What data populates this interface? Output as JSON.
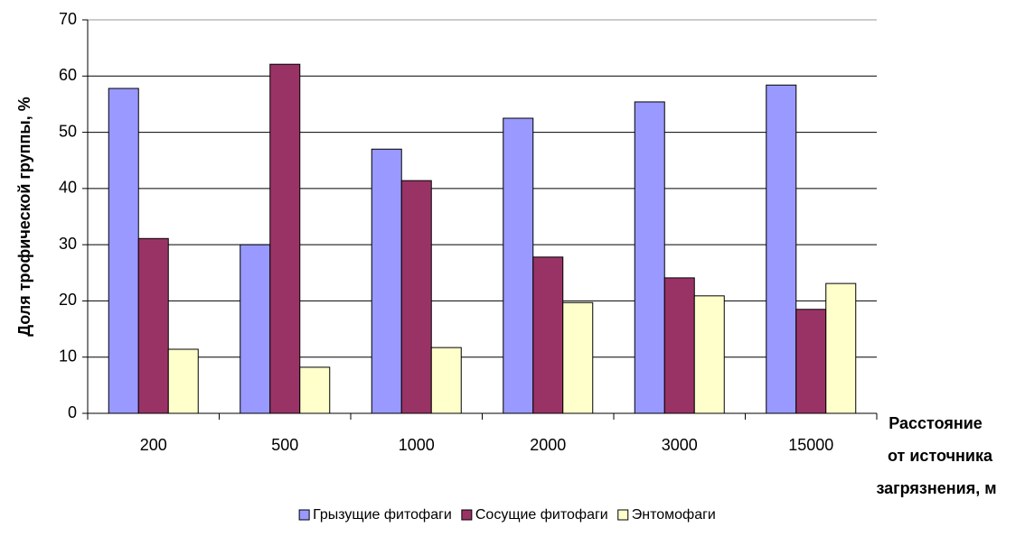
{
  "chart_data": {
    "type": "bar",
    "ylabel": "Доля трофической группы, %",
    "xlabel": [
      "Расстояние",
      "от источника",
      "загрязнения, м"
    ],
    "categories": [
      "200",
      "500",
      "1000",
      "2000",
      "3000",
      "15000"
    ],
    "series": [
      {
        "name": "Грызущие фитофаги",
        "color": "#9999ff",
        "values": [
          57.8,
          30.0,
          47.0,
          52.5,
          55.4,
          58.4
        ]
      },
      {
        "name": "Сосущие фитофаги",
        "color": "#993366",
        "values": [
          31.1,
          62.1,
          41.4,
          27.8,
          24.1,
          18.5
        ]
      },
      {
        "name": "Энтомофаги",
        "color": "#ffffcc",
        "values": [
          11.4,
          8.2,
          11.7,
          19.7,
          20.9,
          23.1
        ]
      }
    ],
    "ylim": [
      0,
      70
    ],
    "yticks": [
      0,
      10,
      20,
      30,
      40,
      50,
      60,
      70
    ],
    "grid": true,
    "legend": "bottom"
  }
}
